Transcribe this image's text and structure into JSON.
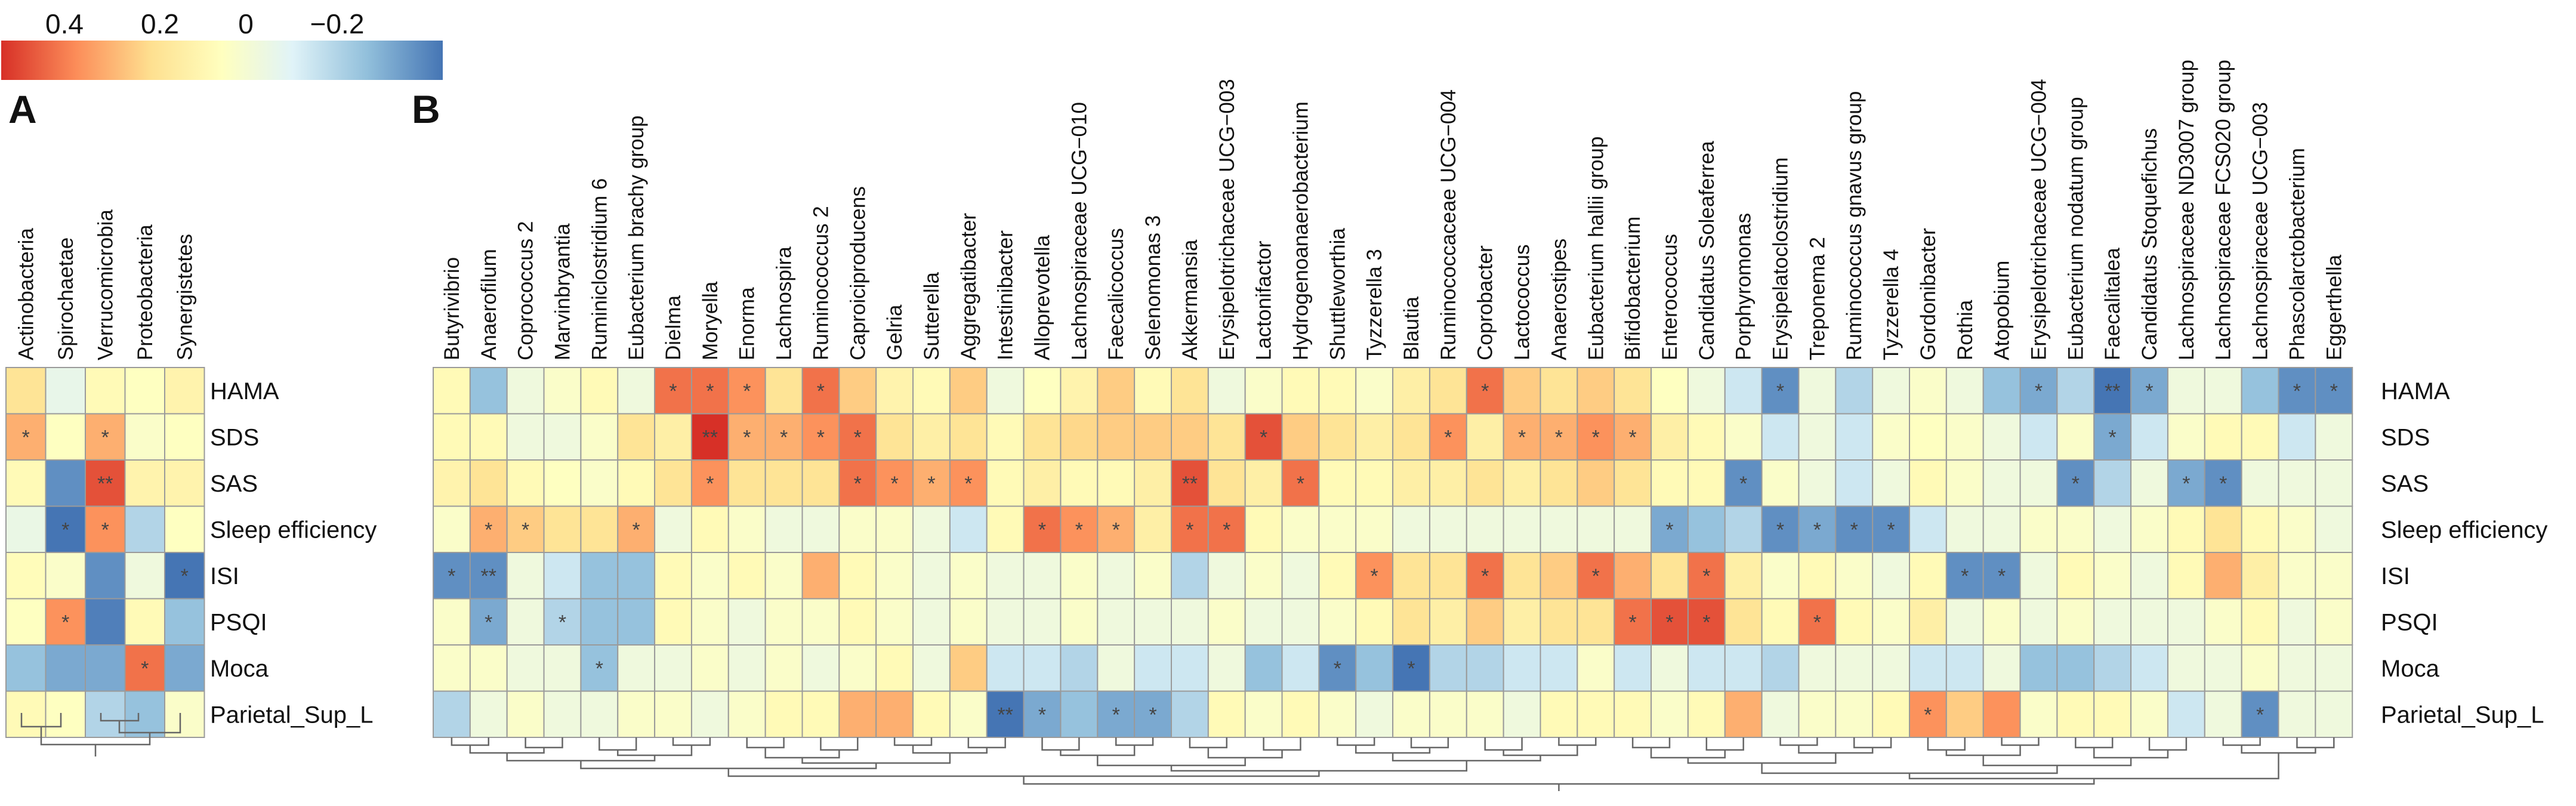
{
  "chart_data": {
    "type": "heatmap",
    "title": "",
    "colorbar": {
      "tick_labels": [
        "0.4",
        "0.2",
        "0",
        "−0.2"
      ],
      "tick_values": [
        0.4,
        0.2,
        0,
        -0.2
      ],
      "range": [
        0.55,
        -0.3
      ],
      "colors": [
        "#d73027",
        "#fc8d59",
        "#fee090",
        "#ffffbf",
        "#e0f3f8",
        "#91bfdb",
        "#4575b4"
      ]
    },
    "rows": [
      "HAMA",
      "SDS",
      "SAS",
      "Sleep efficiency",
      "ISI",
      "PSQI",
      "Moca",
      "Parietal_Sup_L"
    ],
    "panels": [
      {
        "panel_label": "A",
        "columns": [
          "Actinobacteria",
          "Spirochaetae",
          "Verrucomicrobia",
          "Proteobacteria",
          "Synergistetes"
        ],
        "values": [
          [
            0.25,
            0.02,
            0.15,
            0.12,
            0.18
          ],
          [
            0.35,
            0.12,
            0.35,
            0.1,
            0.12
          ],
          [
            0.15,
            -0.25,
            0.5,
            0.18,
            0.18
          ],
          [
            0.03,
            -0.3,
            0.4,
            -0.1,
            0.12
          ],
          [
            0.14,
            0.1,
            -0.25,
            0.05,
            -0.3
          ],
          [
            0.12,
            0.4,
            -0.28,
            0.15,
            -0.15
          ],
          [
            -0.15,
            -0.2,
            -0.2,
            0.45,
            -0.2
          ],
          [
            0.15,
            0.12,
            -0.1,
            -0.15,
            0.1
          ]
        ],
        "significance": [
          [
            "",
            "",
            "",
            "",
            ""
          ],
          [
            "*",
            "",
            "*",
            "",
            ""
          ],
          [
            "",
            "",
            "**",
            "",
            ""
          ],
          [
            "",
            "*",
            "*",
            "",
            ""
          ],
          [
            "",
            "",
            "",
            "",
            "*"
          ],
          [
            "",
            "*",
            "",
            "",
            ""
          ],
          [
            "",
            "",
            "",
            "*",
            ""
          ],
          [
            "",
            "",
            "",
            "",
            ""
          ]
        ]
      },
      {
        "panel_label": "B",
        "columns": [
          "Butyrivibrio",
          "Anaerofilum",
          "Coprococcus 2",
          "Marvinbryantia",
          "Ruminiclostridium 6",
          "Eubacterium brachy group",
          "Dielma",
          "Moryella",
          "Enorma",
          "Lachnospira",
          "Ruminococcus 2",
          "Caproiciproducens",
          "Gelria",
          "Sutterella",
          "Aggregatibacter",
          "Intestinibacter",
          "Alloprevotella",
          "Lachnospiraceae UCG−010",
          "Faecalicoccus",
          "Selenomonas 3",
          "Akkermansia",
          "Erysipelotrichaceae UCG−003",
          "Lactonifactor",
          "Hydrogenoanaerobacterium",
          "Shuttleworthia",
          "Tyzzerella 3",
          "Blautia",
          "Ruminococcaceae UCG−004",
          "Coprobacter",
          "Lactococcus",
          "Anaerostipes",
          "Eubacterium hallii group",
          "Bifidobacterium",
          "Enterococcus",
          "Candidatus Soleaferrea",
          "Porphyromonas",
          "Erysipelatoclostridium",
          "Treponema 2",
          "Ruminococcus gnavus group",
          "Tyzzerella 4",
          "Gordonibacter",
          "Rothia",
          "Atopobium",
          "Erysipelotrichaceae UCG−004",
          "Eubacterium nodatum group",
          "Faecalitalea",
          "Candidatus Stoquefichus",
          "Lachnospiraceae ND3007 group",
          "Lachnospiraceae FCS020 group",
          "Lachnospiraceae UCG−003",
          "Phascolarctobacterium",
          "Eggerthella"
        ],
        "values": [
          [
            0.15,
            -0.15,
            0.05,
            0.1,
            0.15,
            0.05,
            0.45,
            0.45,
            0.4,
            0.25,
            0.45,
            0.3,
            0.18,
            0.15,
            0.3,
            0.05,
            0.12,
            0.18,
            0.3,
            0.15,
            0.25,
            0.05,
            0.1,
            0.15,
            0.15,
            0.1,
            0.2,
            0.25,
            0.45,
            0.3,
            0.25,
            0.3,
            0.25,
            0.12,
            0.05,
            -0.05,
            -0.25,
            0.05,
            -0.1,
            0.05,
            0.1,
            0.05,
            -0.15,
            -0.2,
            -0.1,
            -0.3,
            -0.2,
            0.05,
            0.05,
            -0.15,
            -0.25,
            -0.25
          ],
          [
            0.15,
            0.15,
            0.05,
            0.05,
            0.1,
            0.25,
            0.2,
            0.55,
            0.35,
            0.35,
            0.4,
            0.45,
            0.25,
            0.2,
            0.25,
            0.15,
            0.25,
            0.28,
            0.3,
            0.3,
            0.3,
            0.25,
            0.5,
            0.3,
            0.25,
            0.2,
            0.25,
            0.4,
            0.2,
            0.35,
            0.35,
            0.4,
            0.35,
            0.2,
            0.15,
            0.1,
            -0.05,
            0.05,
            -0.05,
            0.1,
            0.12,
            0.1,
            0.05,
            -0.05,
            0.1,
            -0.2,
            -0.05,
            0.1,
            0.15,
            0.15,
            -0.05,
            0.05
          ],
          [
            0.18,
            0.25,
            0.15,
            0.12,
            0.1,
            0.15,
            0.25,
            0.4,
            0.25,
            0.25,
            0.25,
            0.45,
            0.4,
            0.35,
            0.4,
            0.15,
            0.2,
            0.15,
            0.15,
            0.2,
            0.5,
            0.25,
            0.2,
            0.45,
            0.15,
            0.15,
            0.2,
            0.2,
            0.25,
            0.2,
            0.25,
            0.3,
            0.25,
            0.15,
            0.15,
            -0.25,
            0.1,
            0.05,
            -0.05,
            0.05,
            0.15,
            0.1,
            0.05,
            0.05,
            -0.25,
            -0.1,
            0.05,
            -0.2,
            -0.25,
            0.05,
            0.05,
            0.05
          ],
          [
            0.1,
            0.35,
            0.3,
            0.25,
            0.25,
            0.35,
            0.05,
            0.15,
            0.1,
            0.05,
            0.05,
            0.1,
            0.1,
            0.05,
            -0.05,
            0.15,
            0.45,
            0.4,
            0.35,
            0.2,
            0.45,
            0.45,
            0.15,
            0.1,
            0.1,
            0.1,
            0.05,
            0.05,
            0.05,
            0.05,
            0.05,
            0.05,
            0.05,
            -0.2,
            -0.15,
            -0.1,
            -0.25,
            -0.2,
            -0.25,
            -0.25,
            -0.05,
            0.05,
            0.05,
            0.1,
            0.1,
            0.05,
            0.1,
            0.15,
            0.25,
            0.15,
            0.1,
            0.05
          ],
          [
            -0.25,
            -0.25,
            0.05,
            -0.05,
            -0.15,
            -0.15,
            0.15,
            0.1,
            0.15,
            0.1,
            0.35,
            0.15,
            0.1,
            0.05,
            0.1,
            0.05,
            0.05,
            0.1,
            0.05,
            0.1,
            -0.1,
            0.05,
            0.1,
            0.05,
            0.15,
            0.4,
            0.25,
            0.25,
            0.45,
            0.25,
            0.3,
            0.45,
            0.35,
            0.25,
            0.45,
            0.2,
            0.1,
            0.15,
            0.1,
            0.05,
            0.15,
            -0.25,
            -0.25,
            0.05,
            0.15,
            0.1,
            0.05,
            0.15,
            0.35,
            0.2,
            0.1,
            0.1
          ],
          [
            0.1,
            -0.2,
            0.05,
            -0.1,
            -0.15,
            -0.15,
            0.15,
            0.1,
            0.05,
            0.1,
            0.1,
            0.15,
            0.1,
            0.05,
            0.1,
            0.05,
            0.05,
            0.1,
            0.05,
            0.05,
            0.05,
            0.1,
            0.05,
            0.05,
            0.1,
            0.15,
            0.25,
            0.2,
            0.3,
            0.2,
            0.25,
            0.25,
            0.45,
            0.5,
            0.5,
            0.25,
            0.15,
            0.45,
            0.15,
            0.1,
            0.2,
            0.05,
            0.1,
            0.05,
            0.1,
            0.05,
            0.05,
            0.05,
            0.1,
            0.15,
            0.05,
            0.1
          ],
          [
            0.1,
            0.1,
            0.05,
            0.05,
            -0.15,
            0.05,
            0.05,
            0.1,
            0.05,
            0.1,
            0.05,
            0.1,
            0.15,
            0.05,
            0.3,
            -0.05,
            -0.05,
            -0.1,
            0.05,
            -0.05,
            -0.05,
            0.05,
            -0.15,
            -0.05,
            -0.25,
            -0.15,
            -0.3,
            -0.1,
            -0.1,
            -0.05,
            -0.05,
            0.1,
            -0.05,
            0.05,
            -0.05,
            -0.05,
            -0.1,
            0.05,
            0.05,
            0.05,
            -0.05,
            -0.05,
            0.05,
            -0.15,
            -0.15,
            -0.1,
            -0.05,
            0.05,
            0.05,
            0.1,
            0.05,
            0.05
          ],
          [
            -0.1,
            0.05,
            0.1,
            0.05,
            0.05,
            0.1,
            0.1,
            0.05,
            0.1,
            0.15,
            0.15,
            0.35,
            0.35,
            0.15,
            0.1,
            -0.35,
            -0.2,
            -0.15,
            -0.2,
            -0.2,
            -0.1,
            0.15,
            0.1,
            0.15,
            0.1,
            0.05,
            0.1,
            0.1,
            0.1,
            0.05,
            0.15,
            0.15,
            0.15,
            0.1,
            0.15,
            0.35,
            0.05,
            0.1,
            0.1,
            0.15,
            0.4,
            0.3,
            0.4,
            0.1,
            0.15,
            0.15,
            0.1,
            -0.05,
            0.05,
            -0.25,
            0.05,
            0.05
          ]
        ],
        "significance": [
          [
            "",
            "",
            "",
            "",
            "",
            "",
            "*",
            "*",
            "*",
            "",
            "*",
            "",
            "",
            "",
            "",
            "",
            "",
            "",
            "",
            "",
            "",
            "",
            "",
            "",
            "",
            "",
            "",
            "",
            "*",
            "",
            "",
            "",
            "",
            "",
            "",
            "",
            "*",
            "",
            "",
            "",
            "",
            "",
            "",
            "*",
            "",
            "**",
            "*",
            "",
            "",
            "",
            "*",
            "*"
          ],
          [
            "",
            "",
            "",
            "",
            "",
            "",
            "",
            "**",
            "*",
            "*",
            "*",
            "*",
            "",
            "",
            "",
            "",
            "",
            "",
            "",
            "",
            "",
            "",
            "*",
            "",
            "",
            "",
            "",
            "*",
            "",
            "*",
            "*",
            "*",
            "*",
            "",
            "",
            "",
            "",
            "",
            "",
            "",
            "",
            "",
            "",
            "",
            "",
            "*",
            "",
            "",
            "",
            "",
            "",
            ""
          ],
          [
            "",
            "",
            "",
            "",
            "",
            "",
            "",
            "*",
            "",
            "",
            "",
            "*",
            "*",
            "*",
            "*",
            "",
            "",
            "",
            "",
            "",
            "**",
            "",
            "",
            "*",
            "",
            "",
            "",
            "",
            "",
            "",
            "",
            "",
            "",
            "",
            "",
            "*",
            "",
            "",
            "",
            "",
            "",
            "",
            "",
            "",
            "*",
            "",
            "",
            "*",
            "*",
            "",
            "",
            ""
          ],
          [
            "",
            "*",
            "*",
            "",
            "",
            "*",
            "",
            "",
            "",
            "",
            "",
            "",
            "",
            "",
            "",
            "",
            "*",
            "*",
            "*",
            "",
            "*",
            "*",
            "",
            "",
            "",
            "",
            "",
            "",
            "",
            "",
            "",
            "",
            "",
            "*",
            "",
            "",
            "*",
            "*",
            "*",
            "*",
            "",
            "",
            "",
            "",
            "",
            "",
            "",
            "",
            "",
            "",
            "",
            ""
          ],
          [
            "*",
            "**",
            "",
            "",
            "",
            "",
            "",
            "",
            "",
            "",
            "",
            "",
            "",
            "",
            "",
            "",
            "",
            "",
            "",
            "",
            "",
            "",
            "",
            "",
            "",
            "*",
            "",
            "",
            "*",
            "",
            "",
            "*",
            "",
            "",
            "*",
            "",
            "",
            "",
            "",
            "",
            "",
            "*",
            "*",
            "",
            "",
            "",
            "",
            "",
            "",
            "",
            "",
            ""
          ],
          [
            "",
            "*",
            "",
            "*",
            "",
            "",
            "",
            "",
            "",
            "",
            "",
            "",
            "",
            "",
            "",
            "",
            "",
            "",
            "",
            "",
            "",
            "",
            "",
            "",
            "",
            "",
            "",
            "",
            "",
            "",
            "",
            "",
            "*",
            "*",
            "*",
            "",
            "",
            "*",
            "",
            "",
            "",
            "",
            "",
            "",
            "",
            "",
            "",
            "",
            "",
            "",
            "",
            ""
          ],
          [
            "",
            "",
            "",
            "",
            "*",
            "",
            "",
            "",
            "",
            "",
            "",
            "",
            "",
            "",
            "",
            "",
            "",
            "",
            "",
            "",
            "",
            "",
            "",
            "",
            "*",
            "",
            "*",
            "",
            "",
            "",
            "",
            "",
            "",
            "",
            "",
            "",
            "",
            "",
            "",
            "",
            "",
            "",
            "",
            "",
            "",
            "",
            "",
            "",
            "",
            "",
            "",
            ""
          ],
          [
            "",
            "",
            "",
            "",
            "",
            "",
            "",
            "",
            "",
            "",
            "",
            "",
            "",
            "",
            "",
            "**",
            "*",
            "",
            "*",
            "*",
            "",
            "",
            "",
            "",
            "",
            "",
            "",
            "",
            "",
            "",
            "",
            "",
            "",
            "",
            "",
            "",
            "",
            "",
            "",
            "",
            "*",
            "",
            "",
            "",
            "",
            "",
            "",
            "",
            "",
            "*",
            "",
            ""
          ]
        ]
      }
    ]
  }
}
